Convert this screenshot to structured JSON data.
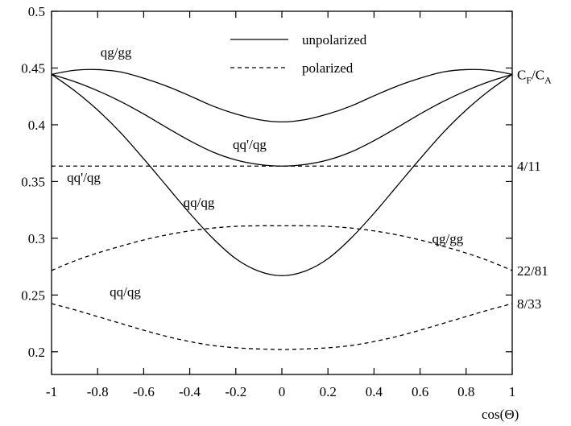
{
  "chart_data": {
    "type": "line",
    "title": "",
    "xlabel": "cos(Θ)",
    "ylabel": "",
    "xlim": [
      -1,
      1
    ],
    "ylim": [
      0.18,
      0.5
    ],
    "x_ticks": [
      {
        "value": -1,
        "label": "-1"
      },
      {
        "value": -0.8,
        "label": "-0.8"
      },
      {
        "value": -0.6,
        "label": "-0.6"
      },
      {
        "value": -0.4,
        "label": "-0.4"
      },
      {
        "value": -0.2,
        "label": "-0.2"
      },
      {
        "value": 0,
        "label": "0"
      },
      {
        "value": 0.2,
        "label": "0.2"
      },
      {
        "value": 0.4,
        "label": "0.4"
      },
      {
        "value": 0.6,
        "label": "0.6"
      },
      {
        "value": 0.8,
        "label": "0.8"
      },
      {
        "value": 1,
        "label": "1"
      }
    ],
    "y_ticks": [
      {
        "value": 0.2,
        "label": "0.2"
      },
      {
        "value": 0.25,
        "label": "0.25"
      },
      {
        "value": 0.3,
        "label": "0.3"
      },
      {
        "value": 0.35,
        "label": "0.35"
      },
      {
        "value": 0.4,
        "label": "0.4"
      },
      {
        "value": 0.45,
        "label": "0.45"
      },
      {
        "value": 0.5,
        "label": "0.5"
      }
    ],
    "grid": false,
    "legend": {
      "placement": "top-center",
      "entries": [
        {
          "label": "unpolarized",
          "style": "solid"
        },
        {
          "label": "polarized",
          "style": "dashed"
        }
      ]
    },
    "x": [
      -1,
      -0.9,
      -0.8,
      -0.7,
      -0.6,
      -0.5,
      -0.4,
      -0.3,
      -0.2,
      -0.1,
      0,
      0.1,
      0.2,
      0.3,
      0.4,
      0.5,
      0.6,
      0.7,
      0.8,
      0.9,
      1
    ],
    "series": [
      {
        "style": "solid",
        "values": [
          0.4444,
          0.448,
          0.4486,
          0.4465,
          0.441,
          0.434,
          0.4255,
          0.4165,
          0.4095,
          0.4045,
          0.4025,
          0.4045,
          0.4095,
          0.4165,
          0.4255,
          0.434,
          0.441,
          0.4465,
          0.4486,
          0.448,
          0.4444
        ]
      },
      {
        "style": "solid",
        "values": [
          0.4444,
          0.438,
          0.43,
          0.4205,
          0.4095,
          0.3975,
          0.386,
          0.376,
          0.369,
          0.365,
          0.3636,
          0.365,
          0.369,
          0.376,
          0.386,
          0.3975,
          0.4095,
          0.4205,
          0.43,
          0.438,
          0.4444
        ]
      },
      {
        "style": "solid",
        "values": [
          0.4444,
          0.43,
          0.413,
          0.393,
          0.37,
          0.346,
          0.322,
          0.3,
          0.282,
          0.271,
          0.267,
          0.271,
          0.282,
          0.3,
          0.322,
          0.346,
          0.37,
          0.393,
          0.413,
          0.43,
          0.4444
        ]
      },
      {
        "style": "dashed",
        "values": [
          0.3636,
          0.3636,
          0.3636,
          0.3636,
          0.3636,
          0.3636,
          0.3636,
          0.3636,
          0.3636,
          0.3636,
          0.3636,
          0.3636,
          0.3636,
          0.3636,
          0.3636,
          0.3636,
          0.3636,
          0.3636,
          0.3636,
          0.3636,
          0.3636
        ]
      },
      {
        "style": "dashed",
        "values": [
          0.2716,
          0.28,
          0.287,
          0.293,
          0.2985,
          0.303,
          0.3065,
          0.309,
          0.3105,
          0.311,
          0.311,
          0.311,
          0.3105,
          0.309,
          0.3065,
          0.303,
          0.2985,
          0.293,
          0.287,
          0.28,
          0.2716
        ]
      },
      {
        "style": "dashed",
        "values": [
          0.2424,
          0.237,
          0.231,
          0.225,
          0.219,
          0.2135,
          0.209,
          0.2055,
          0.2035,
          0.2025,
          0.202,
          0.2025,
          0.2035,
          0.2055,
          0.209,
          0.2135,
          0.219,
          0.225,
          0.231,
          0.237,
          0.2424
        ]
      }
    ],
    "annotations": [
      {
        "text": "qg/gg",
        "x": -0.72,
        "y": 0.464
      },
      {
        "text": "qq'/qg",
        "x": -0.14,
        "y": 0.383
      },
      {
        "text": "qq'/qg",
        "x": -0.86,
        "y": 0.354
      },
      {
        "text": "qq/qg",
        "x": -0.36,
        "y": 0.332
      },
      {
        "text": "qg/gg",
        "x": 0.72,
        "y": 0.3
      },
      {
        "text": "qq/qg",
        "x": -0.68,
        "y": 0.253
      }
    ],
    "right_labels": [
      {
        "id": "cf-ca",
        "main1": "C",
        "sub1": "F",
        "slash": "/",
        "main2": "C",
        "sub2": "A",
        "y": 0.4444
      },
      {
        "id": "4-11",
        "text": "4/11",
        "y": 0.3636
      },
      {
        "id": "22-81",
        "text": "22/81",
        "y": 0.2716
      },
      {
        "id": "8-33",
        "text": "8/33",
        "y": 0.2424
      }
    ]
  }
}
